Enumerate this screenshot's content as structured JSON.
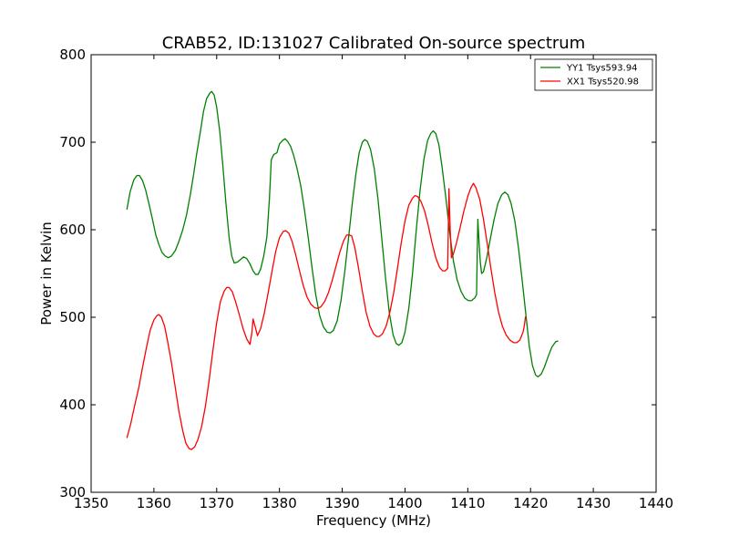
{
  "chart_data": {
    "type": "line",
    "title": "CRAB52, ID:131027 Calibrated On-source spectrum",
    "xlabel": "Frequency (MHz)",
    "ylabel": "Power in Kelvin",
    "xlim": [
      1350,
      1440
    ],
    "ylim": [
      300,
      800
    ],
    "xticks": [
      1350,
      1360,
      1370,
      1380,
      1390,
      1400,
      1410,
      1420,
      1430,
      1440
    ],
    "yticks": [
      300,
      400,
      500,
      600,
      700,
      800
    ],
    "grid": false,
    "legend_position": "top-right",
    "series": [
      {
        "name": "YY1 Tsys593.94",
        "color": "#008000",
        "points": [
          [
            1355.7,
            623
          ],
          [
            1356.2,
            643
          ],
          [
            1356.8,
            657
          ],
          [
            1357.3,
            662
          ],
          [
            1357.7,
            662
          ],
          [
            1358.2,
            656
          ],
          [
            1358.7,
            645
          ],
          [
            1359.2,
            630
          ],
          [
            1359.8,
            611
          ],
          [
            1360.3,
            594
          ],
          [
            1360.8,
            583
          ],
          [
            1361.3,
            574
          ],
          [
            1361.8,
            570
          ],
          [
            1362.3,
            568
          ],
          [
            1362.8,
            570
          ],
          [
            1363.4,
            576
          ],
          [
            1364.0,
            587
          ],
          [
            1364.6,
            600
          ],
          [
            1365.2,
            617
          ],
          [
            1365.8,
            640
          ],
          [
            1366.3,
            662
          ],
          [
            1366.8,
            686
          ],
          [
            1367.4,
            712
          ],
          [
            1367.9,
            735
          ],
          [
            1368.4,
            750
          ],
          [
            1368.9,
            756
          ],
          [
            1369.2,
            758
          ],
          [
            1369.6,
            754
          ],
          [
            1370.0,
            740
          ],
          [
            1370.5,
            712
          ],
          [
            1371.0,
            672
          ],
          [
            1371.5,
            628
          ],
          [
            1372.0,
            590
          ],
          [
            1372.4,
            570
          ],
          [
            1372.8,
            562
          ],
          [
            1373.3,
            563
          ],
          [
            1373.8,
            566
          ],
          [
            1374.3,
            569
          ],
          [
            1374.8,
            567
          ],
          [
            1375.3,
            561
          ],
          [
            1375.8,
            553
          ],
          [
            1376.2,
            549
          ],
          [
            1376.6,
            549
          ],
          [
            1377.0,
            555
          ],
          [
            1377.5,
            570
          ],
          [
            1378.0,
            592
          ],
          [
            1378.4,
            635
          ],
          [
            1378.7,
            680
          ],
          [
            1379.1,
            686
          ],
          [
            1379.6,
            688
          ],
          [
            1380.0,
            698
          ],
          [
            1380.5,
            702
          ],
          [
            1380.9,
            704
          ],
          [
            1381.3,
            701
          ],
          [
            1381.8,
            695
          ],
          [
            1382.3,
            684
          ],
          [
            1382.8,
            670
          ],
          [
            1383.4,
            650
          ],
          [
            1384.0,
            622
          ],
          [
            1384.6,
            590
          ],
          [
            1385.2,
            556
          ],
          [
            1385.8,
            525
          ],
          [
            1386.4,
            502
          ],
          [
            1387.0,
            489
          ],
          [
            1387.6,
            483
          ],
          [
            1388.1,
            482
          ],
          [
            1388.6,
            485
          ],
          [
            1389.2,
            496
          ],
          [
            1389.8,
            519
          ],
          [
            1390.4,
            552
          ],
          [
            1391.0,
            590
          ],
          [
            1391.6,
            630
          ],
          [
            1392.2,
            665
          ],
          [
            1392.7,
            688
          ],
          [
            1393.2,
            700
          ],
          [
            1393.6,
            703
          ],
          [
            1394.0,
            701
          ],
          [
            1394.5,
            692
          ],
          [
            1395.1,
            670
          ],
          [
            1395.7,
            635
          ],
          [
            1396.3,
            590
          ],
          [
            1396.9,
            545
          ],
          [
            1397.5,
            505
          ],
          [
            1398.1,
            480
          ],
          [
            1398.6,
            470
          ],
          [
            1399.0,
            468
          ],
          [
            1399.5,
            471
          ],
          [
            1400.0,
            483
          ],
          [
            1400.6,
            510
          ],
          [
            1401.2,
            550
          ],
          [
            1401.8,
            600
          ],
          [
            1402.4,
            645
          ],
          [
            1403.0,
            680
          ],
          [
            1403.6,
            702
          ],
          [
            1404.1,
            710
          ],
          [
            1404.5,
            713
          ],
          [
            1404.9,
            710
          ],
          [
            1405.4,
            697
          ],
          [
            1405.9,
            672
          ],
          [
            1406.5,
            637
          ],
          [
            1407.1,
            598
          ],
          [
            1407.7,
            565
          ],
          [
            1408.3,
            543
          ],
          [
            1408.9,
            530
          ],
          [
            1409.5,
            522
          ],
          [
            1410.1,
            519
          ],
          [
            1410.6,
            519
          ],
          [
            1411.1,
            522
          ],
          [
            1411.4,
            526
          ],
          [
            1411.6,
            612
          ],
          [
            1411.8,
            585
          ],
          [
            1412.0,
            563
          ],
          [
            1412.2,
            550
          ],
          [
            1412.5,
            552
          ],
          [
            1413.0,
            567
          ],
          [
            1413.6,
            590
          ],
          [
            1414.2,
            612
          ],
          [
            1414.8,
            630
          ],
          [
            1415.4,
            640
          ],
          [
            1415.9,
            643
          ],
          [
            1416.4,
            640
          ],
          [
            1416.9,
            630
          ],
          [
            1417.5,
            610
          ],
          [
            1418.1,
            578
          ],
          [
            1418.7,
            540
          ],
          [
            1419.3,
            500
          ],
          [
            1419.8,
            467
          ],
          [
            1420.3,
            445
          ],
          [
            1420.8,
            434
          ],
          [
            1421.2,
            432
          ],
          [
            1421.7,
            435
          ],
          [
            1422.2,
            443
          ],
          [
            1422.8,
            455
          ],
          [
            1423.4,
            466
          ],
          [
            1424.0,
            472
          ],
          [
            1424.4,
            473
          ]
        ]
      },
      {
        "name": "XX1 Tsys520.98",
        "color": "#ff0000",
        "points": [
          [
            1355.7,
            362
          ],
          [
            1356.3,
            378
          ],
          [
            1356.9,
            398
          ],
          [
            1357.6,
            420
          ],
          [
            1358.2,
            443
          ],
          [
            1358.8,
            465
          ],
          [
            1359.4,
            485
          ],
          [
            1360.0,
            497
          ],
          [
            1360.5,
            502
          ],
          [
            1360.8,
            503
          ],
          [
            1361.2,
            500
          ],
          [
            1361.7,
            490
          ],
          [
            1362.2,
            472
          ],
          [
            1362.8,
            448
          ],
          [
            1363.4,
            420
          ],
          [
            1364.0,
            392
          ],
          [
            1364.6,
            370
          ],
          [
            1365.1,
            356
          ],
          [
            1365.6,
            350
          ],
          [
            1366.0,
            349
          ],
          [
            1366.5,
            352
          ],
          [
            1367.0,
            360
          ],
          [
            1367.6,
            375
          ],
          [
            1368.2,
            398
          ],
          [
            1368.8,
            428
          ],
          [
            1369.4,
            462
          ],
          [
            1370.0,
            494
          ],
          [
            1370.6,
            518
          ],
          [
            1371.2,
            530
          ],
          [
            1371.6,
            534
          ],
          [
            1372.0,
            534
          ],
          [
            1372.5,
            529
          ],
          [
            1373.0,
            518
          ],
          [
            1373.6,
            503
          ],
          [
            1374.2,
            487
          ],
          [
            1374.8,
            475
          ],
          [
            1375.3,
            469
          ],
          [
            1375.6,
            482
          ],
          [
            1375.8,
            498
          ],
          [
            1376.1,
            490
          ],
          [
            1376.5,
            479
          ],
          [
            1377.0,
            487
          ],
          [
            1377.6,
            505
          ],
          [
            1378.2,
            528
          ],
          [
            1378.8,
            552
          ],
          [
            1379.4,
            575
          ],
          [
            1380.0,
            591
          ],
          [
            1380.6,
            598
          ],
          [
            1381.0,
            599
          ],
          [
            1381.5,
            596
          ],
          [
            1382.0,
            587
          ],
          [
            1382.6,
            571
          ],
          [
            1383.2,
            553
          ],
          [
            1383.8,
            536
          ],
          [
            1384.4,
            523
          ],
          [
            1385.0,
            515
          ],
          [
            1385.6,
            511
          ],
          [
            1386.1,
            510
          ],
          [
            1386.6,
            512
          ],
          [
            1387.2,
            518
          ],
          [
            1387.8,
            528
          ],
          [
            1388.4,
            542
          ],
          [
            1389.0,
            558
          ],
          [
            1389.6,
            574
          ],
          [
            1390.2,
            587
          ],
          [
            1390.7,
            594
          ],
          [
            1391.1,
            594
          ],
          [
            1391.5,
            593
          ],
          [
            1392.0,
            580
          ],
          [
            1392.6,
            556
          ],
          [
            1393.2,
            530
          ],
          [
            1393.8,
            506
          ],
          [
            1394.4,
            490
          ],
          [
            1395.0,
            481
          ],
          [
            1395.5,
            478
          ],
          [
            1395.9,
            478
          ],
          [
            1396.4,
            481
          ],
          [
            1397.0,
            490
          ],
          [
            1397.6,
            506
          ],
          [
            1398.2,
            528
          ],
          [
            1398.8,
            556
          ],
          [
            1399.4,
            585
          ],
          [
            1400.0,
            610
          ],
          [
            1400.6,
            628
          ],
          [
            1401.2,
            636
          ],
          [
            1401.6,
            639
          ],
          [
            1402.0,
            638
          ],
          [
            1402.5,
            633
          ],
          [
            1403.1,
            622
          ],
          [
            1403.7,
            605
          ],
          [
            1404.3,
            585
          ],
          [
            1404.9,
            568
          ],
          [
            1405.5,
            557
          ],
          [
            1406.0,
            553
          ],
          [
            1406.4,
            553
          ],
          [
            1406.8,
            556
          ],
          [
            1407.0,
            647
          ],
          [
            1407.2,
            600
          ],
          [
            1407.4,
            568
          ],
          [
            1407.7,
            572
          ],
          [
            1408.2,
            585
          ],
          [
            1408.8,
            603
          ],
          [
            1409.4,
            622
          ],
          [
            1410.0,
            638
          ],
          [
            1410.5,
            648
          ],
          [
            1410.9,
            653
          ],
          [
            1411.3,
            648
          ],
          [
            1411.9,
            635
          ],
          [
            1412.5,
            612
          ],
          [
            1413.1,
            584
          ],
          [
            1413.7,
            555
          ],
          [
            1414.3,
            528
          ],
          [
            1414.9,
            506
          ],
          [
            1415.5,
            490
          ],
          [
            1416.1,
            480
          ],
          [
            1416.7,
            474
          ],
          [
            1417.3,
            471
          ],
          [
            1417.8,
            471
          ],
          [
            1418.3,
            474
          ],
          [
            1418.8,
            483
          ],
          [
            1419.0,
            490
          ],
          [
            1419.2,
            501
          ]
        ]
      }
    ]
  }
}
